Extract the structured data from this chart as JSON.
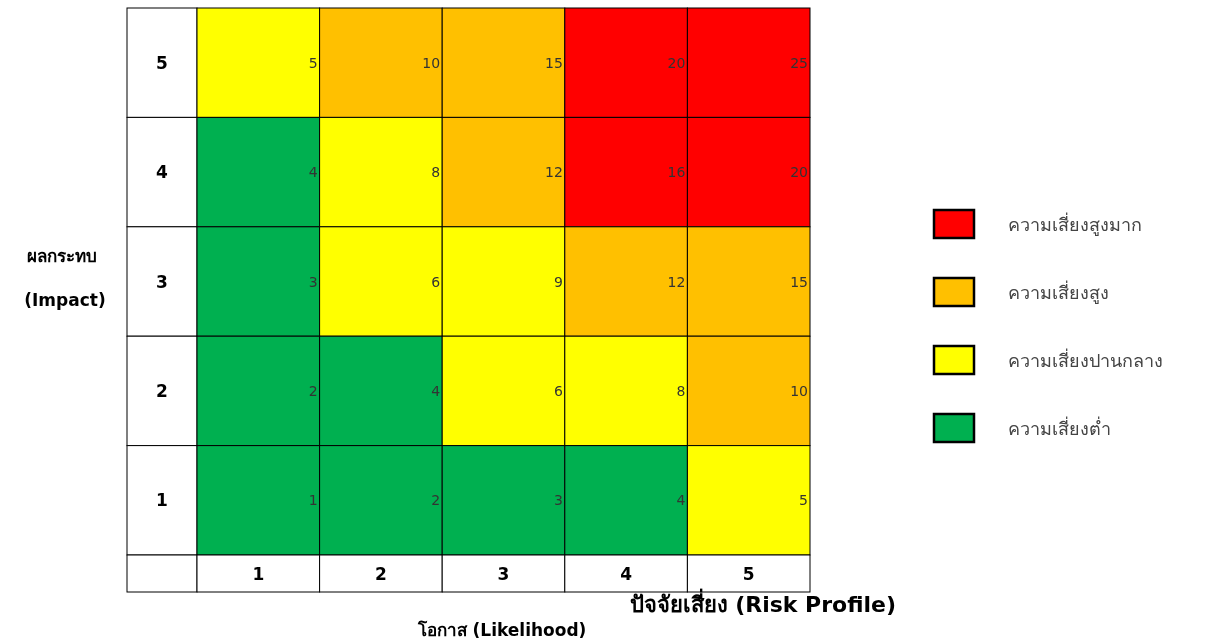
{
  "chart_data": [
    {
      "type": "heatmap",
      "xlabel": "โอกาส (Likelihood)",
      "ylabel": "ผลกระทบ (Impact)",
      "categories": [
        "1",
        "2",
        "3",
        "4",
        "5"
      ],
      "y_categories": [
        "5",
        "4",
        "3",
        "2",
        "1"
      ],
      "cells": [
        [
          5,
          10,
          15,
          20,
          25
        ],
        [
          4,
          8,
          12,
          16,
          20
        ],
        [
          3,
          6,
          9,
          12,
          15
        ],
        [
          2,
          4,
          6,
          8,
          10
        ],
        [
          1,
          2,
          3,
          4,
          5
        ]
      ],
      "data_labels": true,
      "colors": [
        [
          "#ffff00",
          "#ffc000",
          "#ffc000",
          "#ff0000",
          "#ff0000"
        ],
        [
          "#00b050",
          "#ffff00",
          "#ffc000",
          "#ff0000",
          "#ff0000"
        ],
        [
          "#00b050",
          "#ffff00",
          "#ffff00",
          "#ffc000",
          "#ffc000"
        ],
        [
          "#00b050",
          "#00b050",
          "#ffff00",
          "#ffff00",
          "#ffc000"
        ],
        [
          "#00b050",
          "#00b050",
          "#00b050",
          "#00b050",
          "#ffff00"
        ]
      ],
      "annotations": [
        "ปัจจัยเสี่ยง (Risk Profile)"
      ]
    },
    {
      "type": "other",
      "categories": [
        "ความเสี่ยงสูงมาก",
        "ความเสี่ยงสูง",
        "ความเสี่ยงปานกลาง",
        "ความเสี่ยงต่ำ"
      ],
      "colors": [
        "#ff0000",
        "#ffc000",
        "#ffff00",
        "#00b050"
      ]
    }
  ]
}
